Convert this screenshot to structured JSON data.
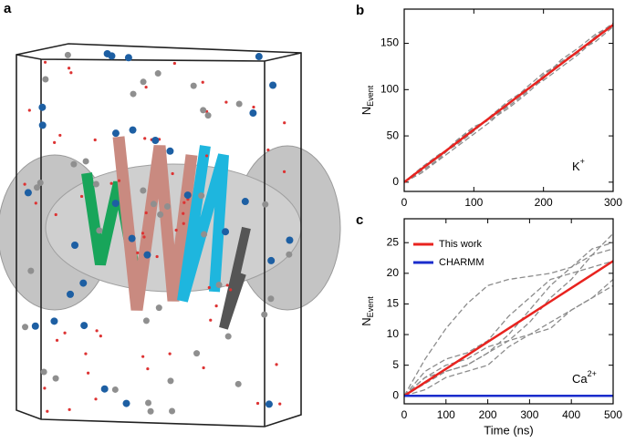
{
  "panel_a": {
    "label": "a"
  },
  "chart_data": [
    {
      "type": "line",
      "panel_label": "b",
      "ylabel": [
        "N",
        "Event"
      ],
      "annotation": [
        "K",
        "+"
      ],
      "x": [
        0,
        25,
        50,
        75,
        100,
        125,
        150,
        175,
        200,
        225,
        250,
        275,
        300
      ],
      "series": [
        {
          "color": "#8c8c8c",
          "dashed": true,
          "values": [
            0,
            12,
            25,
            44,
            58,
            70,
            82,
            97,
            116,
            130,
            142,
            152,
            168
          ]
        },
        {
          "color": "#8c8c8c",
          "dashed": true,
          "values": [
            0,
            16,
            30,
            40,
            55,
            72,
            88,
            100,
            110,
            124,
            138,
            155,
            171
          ]
        },
        {
          "color": "#8c8c8c",
          "dashed": true,
          "values": [
            0,
            14,
            27,
            45,
            60,
            68,
            80,
            95,
            112,
            132,
            145,
            160,
            170
          ]
        },
        {
          "color": "#8c8c8c",
          "dashed": true,
          "values": [
            0,
            10,
            24,
            38,
            52,
            66,
            84,
            102,
            118,
            128,
            140,
            158,
            172
          ]
        },
        {
          "color": "#e8231f",
          "width": 2.5,
          "values": [
            0,
            14.2,
            28.3,
            42.5,
            56.7,
            70.8,
            85,
            99.2,
            113.3,
            127.5,
            141.7,
            155.8,
            170
          ]
        }
      ],
      "xlim": [
        0,
        300
      ],
      "ylim": [
        -10,
        187
      ],
      "xticks": [
        0,
        100,
        200,
        300
      ],
      "yticks": [
        0,
        50,
        100,
        150
      ]
    },
    {
      "type": "line",
      "panel_label": "c",
      "ylabel": [
        "N",
        "Event"
      ],
      "xlabel": "Time (ns)",
      "annotation": [
        "Ca",
        "2+"
      ],
      "x": [
        0,
        50,
        100,
        150,
        200,
        250,
        300,
        350,
        400,
        450,
        500
      ],
      "series": [
        {
          "color": "#8c8c8c",
          "dashed": true,
          "values": [
            0,
            3,
            5,
            6,
            8,
            9,
            12,
            16,
            19,
            23,
            26.5
          ]
        },
        {
          "color": "#8c8c8c",
          "dashed": true,
          "values": [
            0,
            4,
            6,
            7,
            9,
            13,
            16,
            19,
            20,
            21,
            22
          ]
        },
        {
          "color": "#8c8c8c",
          "dashed": true,
          "values": [
            0,
            2,
            4,
            5,
            7,
            10,
            14,
            18,
            21,
            24,
            25
          ]
        },
        {
          "color": "#8c8c8c",
          "dashed": true,
          "values": [
            0,
            1,
            3,
            4,
            5,
            8,
            10,
            12,
            14,
            16,
            19
          ]
        },
        {
          "color": "#8c8c8c",
          "dashed": true,
          "values": [
            0,
            3,
            4,
            5,
            7,
            9,
            10,
            11,
            14,
            16,
            18
          ]
        },
        {
          "color": "#8c8c8c",
          "dashed": true,
          "values": [
            0,
            6,
            11,
            15,
            18,
            19,
            19.5,
            20,
            21,
            23,
            24
          ]
        },
        {
          "name": "This work",
          "color": "#e8231f",
          "width": 2.5,
          "values": [
            0,
            2.2,
            4.4,
            6.6,
            8.8,
            11,
            13.2,
            15.4,
            17.6,
            19.8,
            22
          ]
        },
        {
          "name": "CHARMM",
          "color": "#1a2ccc",
          "width": 2.5,
          "values": [
            0,
            0,
            0,
            0,
            0,
            0,
            0,
            0,
            0,
            0,
            0
          ]
        }
      ],
      "xlim": [
        0,
        500
      ],
      "ylim": [
        -1.3,
        28.9
      ],
      "xticks": [
        0,
        100,
        200,
        300,
        400,
        500
      ],
      "yticks": [
        0,
        5,
        10,
        15,
        20,
        25
      ],
      "legend": "upper left"
    }
  ]
}
